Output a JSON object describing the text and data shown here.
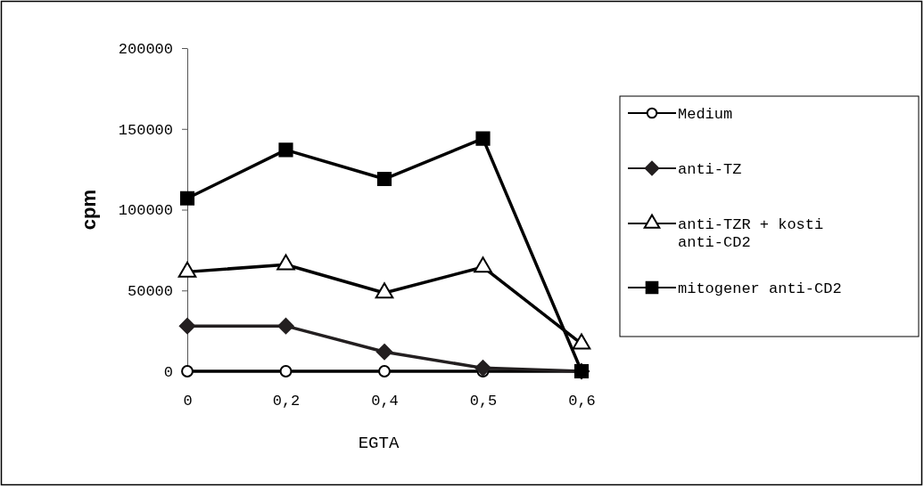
{
  "chart_data": {
    "type": "line",
    "xlabel": "EGTA",
    "ylabel": "cpm",
    "categories": [
      "0",
      "0,2",
      "0,4",
      "0,5",
      "0,6"
    ],
    "ylim": [
      0,
      200000
    ],
    "yticks": [
      0,
      50000,
      100000,
      150000,
      200000
    ],
    "grid": false,
    "legend": "right",
    "line_style": "solid",
    "series": [
      {
        "name": "Medium",
        "color": "#000000",
        "marker": "circle",
        "values": [
          0,
          0,
          0,
          0,
          0
        ]
      },
      {
        "name": "anti-TZ",
        "color": "#231f20",
        "marker": "diamond",
        "values": [
          28000,
          28000,
          12000,
          2000,
          0
        ]
      },
      {
        "name": "anti-TZR + kosti anti-CD2",
        "color": "#000000",
        "marker": "triangle",
        "values": [
          61500,
          66000,
          48500,
          64500,
          17000
        ]
      },
      {
        "name": "mitogener anti-CD2",
        "color": "#000000",
        "marker": "square",
        "values": [
          107000,
          137000,
          119000,
          144000,
          0
        ]
      }
    ]
  }
}
